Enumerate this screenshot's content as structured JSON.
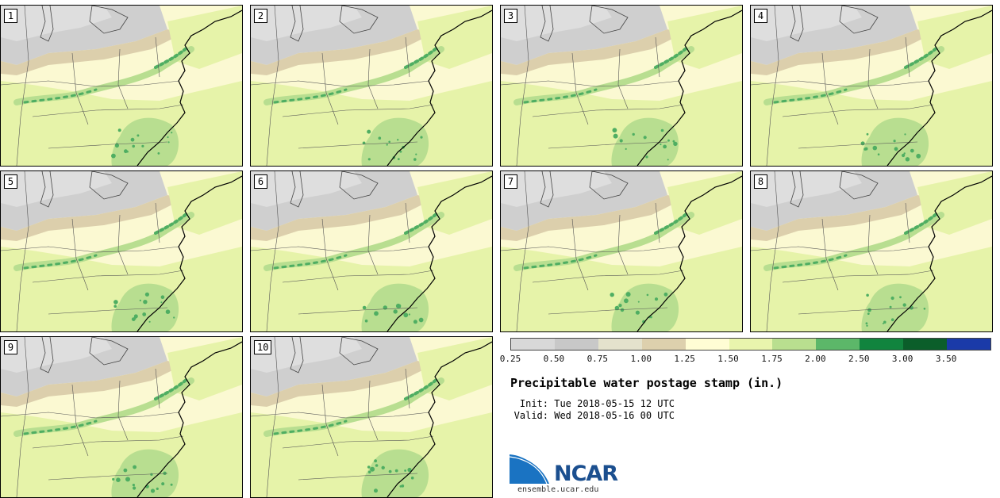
{
  "members": [
    "1",
    "2",
    "3",
    "4",
    "5",
    "6",
    "7",
    "8",
    "9",
    "10"
  ],
  "title": "Precipitable water postage stamp (in.)",
  "init_label": "Init:",
  "init_time": "Tue 2018-05-15 12 UTC",
  "valid_label": "Valid:",
  "valid_time": "Wed 2018-05-16 00 UTC",
  "logo_text": "NCAR",
  "logo_url": "ensemble.ucar.edu",
  "colorbar": {
    "ticks": [
      "0.25",
      "0.50",
      "0.75",
      "1.00",
      "1.25",
      "1.50",
      "1.75",
      "2.00",
      "2.50",
      "3.00",
      "3.50"
    ],
    "colors": [
      "#d8d8d8",
      "#c8c8c8",
      "#e4e2cc",
      "#ddd0ad",
      "#fffdd4",
      "#e9f5ad",
      "#b9df8f",
      "#5cb769",
      "#11843e",
      "#0b5e2a",
      "#1a3aa8"
    ]
  }
}
